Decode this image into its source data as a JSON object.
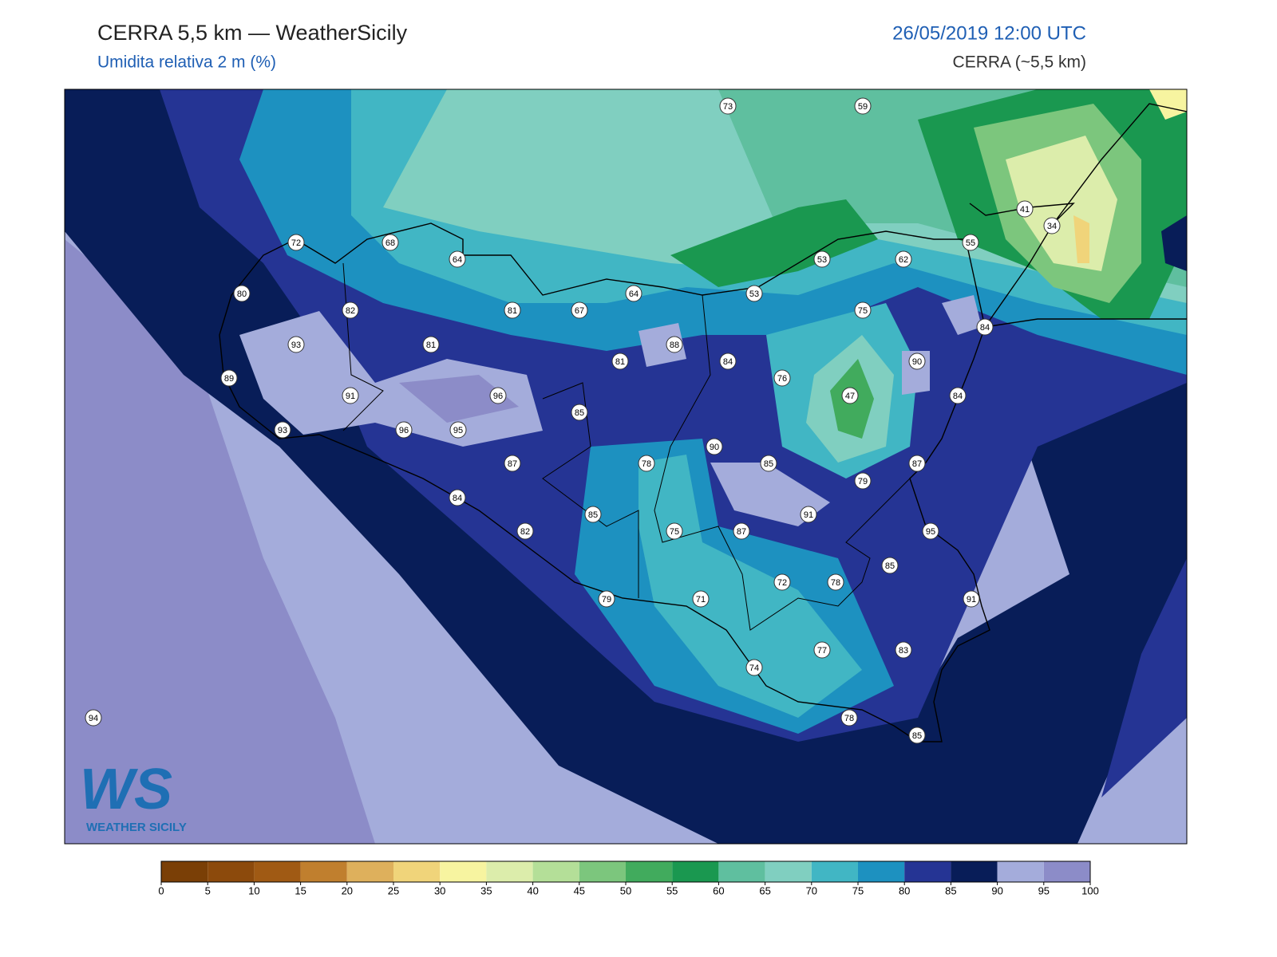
{
  "header": {
    "title": "CERRA 5,5 km — WeatherSicily",
    "subtitle": "Umidita relativa 2 m (%)",
    "datetime": "26/05/2019 12:00 UTC",
    "source": "CERRA (~5,5 km)"
  },
  "stations": [
    73,
    59,
    72,
    68,
    64,
    41,
    34,
    55,
    53,
    62,
    80,
    82,
    81,
    67,
    64,
    53,
    75,
    84,
    93,
    81,
    88,
    81,
    84,
    76,
    90,
    89,
    91,
    96,
    47,
    84,
    85,
    93,
    96,
    95,
    90,
    78,
    85,
    87,
    87,
    79,
    84,
    91,
    85,
    82,
    75,
    87,
    95,
    85,
    72,
    78,
    79,
    71,
    91,
    77,
    83,
    74,
    94,
    78,
    85
  ],
  "colorbar": {
    "ticks": [
      0,
      5,
      10,
      15,
      20,
      25,
      30,
      35,
      40,
      45,
      50,
      55,
      60,
      65,
      70,
      75,
      80,
      85,
      90,
      95,
      100
    ],
    "colors": [
      "#7a3f06",
      "#8c4a0c",
      "#a05a14",
      "#c07f2e",
      "#deb05c",
      "#f0d47a",
      "#f7f4a0",
      "#dcedab",
      "#b4df98",
      "#7cc67d",
      "#41ab5d",
      "#1a9850",
      "#5fbf9f",
      "#80cfc0",
      "#41b6c4",
      "#1d91c0",
      "#253494",
      "#081d58",
      "#a4acdb",
      "#8c8cc8"
    ]
  },
  "logo": {
    "mark": "WS",
    "text": "WEATHER SICILY"
  }
}
